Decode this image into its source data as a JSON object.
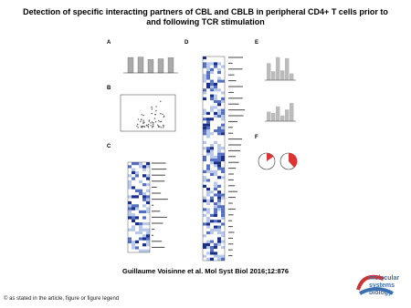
{
  "header": {
    "title": "Detection of specific interacting partners of CBL and CBLB in peripheral CD4+ T cells prior to and following TCR stimulation"
  },
  "figure": {
    "panels": [
      "A",
      "B",
      "C",
      "D",
      "E",
      "F"
    ]
  },
  "caption": "Guillaume Voisinne et al. Mol Syst Biol 2016;12:876",
  "footer": "© as stated in the article, figure or figure legend",
  "logo": [
    "molecular",
    "systems",
    "biology"
  ]
}
